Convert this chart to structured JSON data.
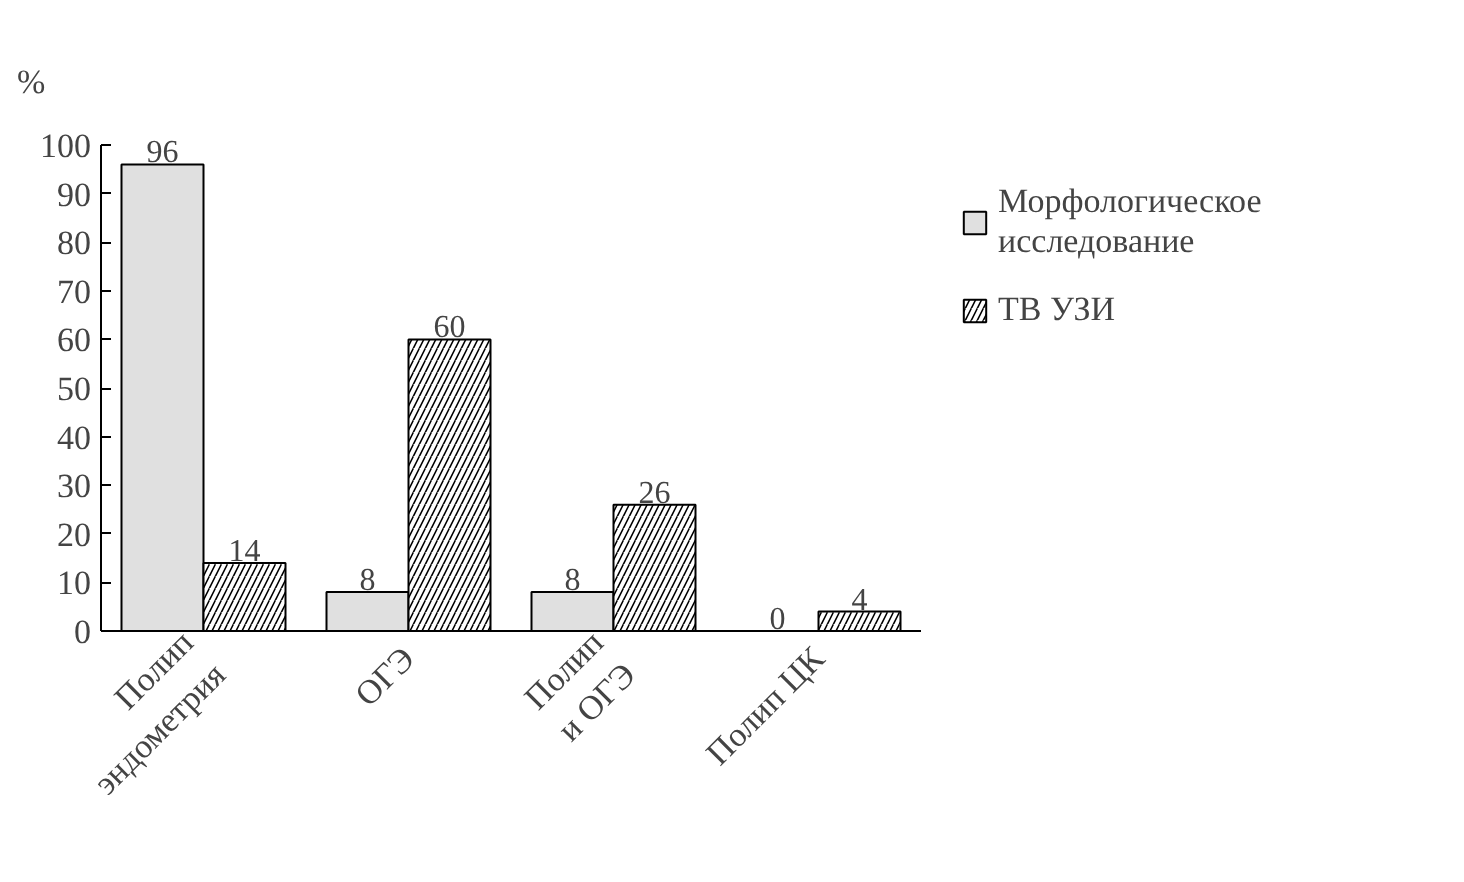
{
  "chart_data": {
    "type": "bar",
    "ylabel": "%",
    "categories": [
      "Полип\nэндометрия",
      "ОГЭ",
      "Полип\nи ОГЭ",
      "Полип ЦК"
    ],
    "series": [
      {
        "name": "Морфологическое\nисследование",
        "color": "#e0e0e0",
        "values": [
          96,
          8,
          8,
          0
        ]
      },
      {
        "name": "ТВ УЗИ",
        "color": "#ffffff",
        "values": [
          14,
          60,
          26,
          4
        ]
      }
    ],
    "ylim": [
      0,
      100
    ],
    "yticks": [
      0,
      10,
      20,
      30,
      40,
      50,
      60,
      70,
      80,
      90,
      100
    ],
    "grid": false,
    "legend": "right",
    "data_labels": true
  }
}
